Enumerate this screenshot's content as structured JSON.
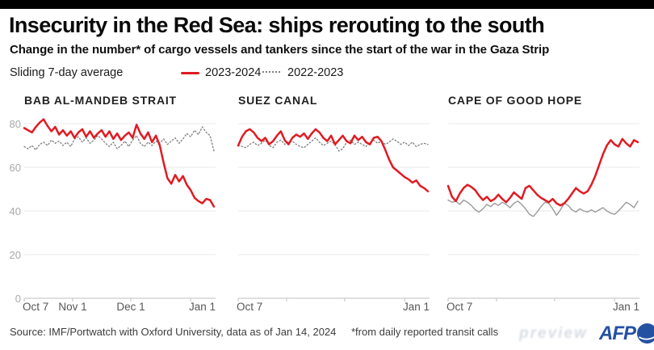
{
  "page": {
    "title": "Insecurity in the Red Sea: ships rerouting to the south",
    "subtitle": "Change in the number* of cargo vessels and tankers since the start of the war in the Gaza Strip"
  },
  "legend": {
    "note": "Sliding 7-day average",
    "series1_label": "2023-2024",
    "series2_label": "2022-2023"
  },
  "colors": {
    "red": "#e01b22",
    "gray_dotted": "#7d7d7d",
    "gray_solid": "#9a9a9a",
    "grid": "#e9e9e9",
    "axis": "#cccccc",
    "afp_blue": "#2551a3",
    "top_bar": "#000000"
  },
  "footer": {
    "source": "Source: IMF/Portwatch with Oxford University, data as of Jan 14, 2024",
    "note": "*from daily reported transit calls",
    "watermark": "preview",
    "logo_text": "AFP"
  },
  "chart_data": [
    {
      "type": "line",
      "title": "BAB AL-MANDEB STRAIT",
      "days_total": 98,
      "ylim": [
        0,
        85
      ],
      "y_ticks": [
        0,
        20,
        40,
        60,
        80
      ],
      "show_y_labels": true,
      "x_ticks": [
        {
          "day": 0,
          "label": "Oct 7"
        },
        {
          "day": 25,
          "label": "Nov 1"
        },
        {
          "day": 55,
          "label": "Dec 1"
        },
        {
          "day": 86,
          "label": "Jan 1"
        }
      ],
      "series": [
        {
          "name": "2022-2023",
          "style": "dotted-gray",
          "values": [
            69.5,
            68.5,
            70,
            68,
            70.5,
            71.5,
            70,
            72.5,
            71,
            72,
            70,
            71.5,
            69.5,
            73,
            74,
            71.5,
            73.5,
            71,
            72.5,
            74.5,
            73,
            71,
            69.5,
            71.5,
            68.5,
            70,
            72,
            69.5,
            72.5,
            74.5,
            71,
            69.5,
            71.5,
            70,
            72,
            71,
            73,
            70.5,
            72,
            73.5,
            71,
            73,
            75.5,
            74,
            77,
            75,
            78.5,
            76,
            74.5,
            67.5
          ]
        },
        {
          "name": "2023-2024",
          "style": "solid-red",
          "values": [
            78,
            77,
            76,
            78.5,
            80.5,
            82,
            79,
            76.5,
            78.5,
            75,
            77,
            74.5,
            76.5,
            73.5,
            76,
            77.5,
            74,
            76.5,
            73.5,
            75.5,
            77,
            74,
            76.5,
            73,
            75.5,
            72.5,
            74.5,
            76,
            73.5,
            79.5,
            75.5,
            73,
            76,
            71.5,
            74.5,
            70,
            62,
            55,
            52.5,
            56.5,
            53.5,
            56,
            52,
            49.5,
            46,
            44.5,
            43.5,
            45.5,
            45,
            42
          ]
        }
      ]
    },
    {
      "type": "line",
      "title": "SUEZ CANAL",
      "days_total": 98,
      "ylim": [
        0,
        85
      ],
      "y_ticks": [
        0,
        20,
        40,
        60,
        80
      ],
      "show_y_labels": false,
      "x_ticks": [
        {
          "day": 0,
          "label": "Oct 7"
        },
        {
          "day": 25,
          "label": ""
        },
        {
          "day": 55,
          "label": ""
        },
        {
          "day": 86,
          "label": "Jan 1"
        }
      ],
      "series": [
        {
          "name": "2022-2023",
          "style": "dotted-gray",
          "values": [
            70,
            69.5,
            69,
            70.5,
            71.5,
            70,
            71,
            72.5,
            70,
            69,
            71.5,
            72.5,
            70.5,
            71.5,
            72,
            70.5,
            69.5,
            69,
            70.5,
            72,
            73.5,
            71.5,
            70,
            71,
            72,
            70.5,
            67.5,
            68.5,
            71.5,
            72.5,
            70.5,
            71.5,
            70.5,
            69.5,
            71.5,
            72.5,
            71,
            72,
            70.5,
            71.5,
            73,
            72,
            70.5,
            71.5,
            70,
            71.5,
            69.5,
            70.5,
            71,
            70.5
          ]
        },
        {
          "name": "2023-2024",
          "style": "solid-red",
          "values": [
            70,
            74,
            76.5,
            77.5,
            76,
            73.5,
            72,
            73.5,
            70.5,
            72,
            74.5,
            76.5,
            72.5,
            70.5,
            73.5,
            75,
            74,
            75.5,
            73,
            75.5,
            77.5,
            76,
            73.5,
            72,
            74.5,
            70.5,
            72.5,
            74.5,
            72,
            71,
            74.5,
            72.5,
            74,
            71.5,
            70.5,
            73.5,
            74,
            72,
            68,
            63.5,
            60,
            58.5,
            57,
            55.5,
            54.5,
            53,
            54,
            51.5,
            50.5,
            49
          ]
        }
      ]
    },
    {
      "type": "line",
      "title": "CAPE OF GOOD HOPE",
      "days_total": 98,
      "ylim": [
        0,
        85
      ],
      "y_ticks": [
        0,
        20,
        40,
        60,
        80
      ],
      "show_y_labels": false,
      "x_ticks": [
        {
          "day": 0,
          "label": "Oct 7"
        },
        {
          "day": 25,
          "label": ""
        },
        {
          "day": 55,
          "label": ""
        },
        {
          "day": 86,
          "label": "Jan 1"
        }
      ],
      "series": [
        {
          "name": "2022-2023",
          "style": "solid-gray",
          "values": [
            45,
            44,
            44.5,
            43,
            45,
            44,
            42.5,
            40.5,
            39.5,
            41,
            43,
            42,
            43.5,
            42.5,
            44,
            43,
            41.5,
            43.5,
            44.5,
            43,
            41,
            38.5,
            37.5,
            39.5,
            42,
            44,
            43.5,
            41,
            38,
            40.5,
            43.5,
            42.5,
            40.5,
            39.5,
            41,
            40,
            39.5,
            40.5,
            39.5,
            40.5,
            41.5,
            40,
            39,
            38.5,
            40,
            42,
            44,
            43,
            41.5,
            44.5
          ]
        },
        {
          "name": "2023-2024",
          "style": "solid-red",
          "values": [
            51.5,
            46.5,
            44.5,
            48,
            50.5,
            52,
            51,
            49.5,
            47,
            45,
            46.5,
            44.5,
            45.5,
            47.5,
            45.5,
            44,
            46,
            48.5,
            47,
            45.5,
            50.5,
            51.5,
            49.5,
            47.5,
            46,
            45,
            44,
            45.5,
            43.5,
            42.5,
            43.5,
            45.5,
            48,
            50.5,
            49,
            48,
            49,
            52,
            56,
            61,
            66,
            70,
            72.5,
            70.5,
            69.5,
            73,
            71,
            69.5,
            72.5,
            71.5
          ]
        }
      ]
    }
  ]
}
